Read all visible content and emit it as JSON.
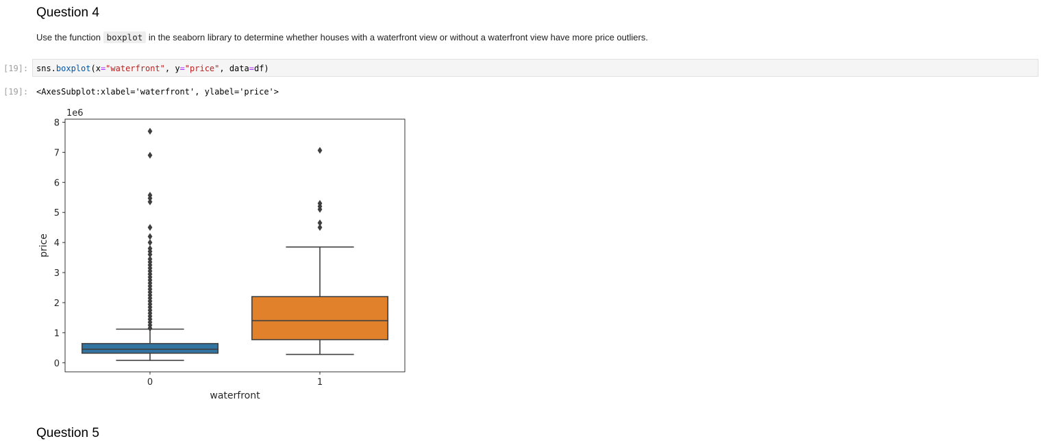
{
  "question4": {
    "heading": "Question 4",
    "text_before": "Use the function ",
    "code_word": "boxplot",
    "text_after": " in the seaborn library to determine whether houses with a waterfront view or without a waterfront view have more price outliers."
  },
  "cell": {
    "input_prompt": "[19]:",
    "output_prompt": "[19]:",
    "code": {
      "t1": "sns.",
      "t2": "boxplot",
      "t3": "(x",
      "t4": "=",
      "t5": "\"waterfront\"",
      "t6": ", y",
      "t7": "=",
      "t8": "\"price\"",
      "t9": ", data",
      "t10": "=",
      "t11": "df)"
    },
    "output_text": "<AxesSubplot:xlabel='waterfront', ylabel='price'>"
  },
  "question5": {
    "heading": "Question 5"
  },
  "chart_data": {
    "type": "boxplot",
    "offset_label": "1e6",
    "xlabel": "waterfront",
    "ylabel": "price",
    "ylim": [
      -0.3,
      8.1
    ],
    "yticks": [
      0,
      1,
      2,
      3,
      4,
      5,
      6,
      7,
      8
    ],
    "categories": [
      "0",
      "1"
    ],
    "colors": [
      "#3274a1",
      "#e1812c"
    ],
    "boxes": [
      {
        "category": "0",
        "whisker_low": 0.08,
        "q1": 0.32,
        "median": 0.45,
        "q3": 0.64,
        "whisker_high": 1.12,
        "outliers": [
          7.7,
          6.9,
          5.57,
          5.47,
          5.35,
          4.5,
          4.2,
          4.0,
          3.8,
          3.7,
          3.6,
          3.45,
          3.35,
          3.25,
          3.15,
          3.05,
          2.95,
          2.85,
          2.75,
          2.65,
          2.55,
          2.45,
          2.35,
          2.25,
          2.15,
          2.05,
          1.95,
          1.85,
          1.75,
          1.65,
          1.55,
          1.45,
          1.35,
          1.25,
          1.15
        ]
      },
      {
        "category": "1",
        "whisker_low": 0.28,
        "q1": 0.77,
        "median": 1.4,
        "q3": 2.2,
        "whisker_high": 3.85,
        "outliers": [
          7.06,
          5.3,
          5.2,
          5.1,
          4.65,
          4.5
        ]
      }
    ]
  }
}
